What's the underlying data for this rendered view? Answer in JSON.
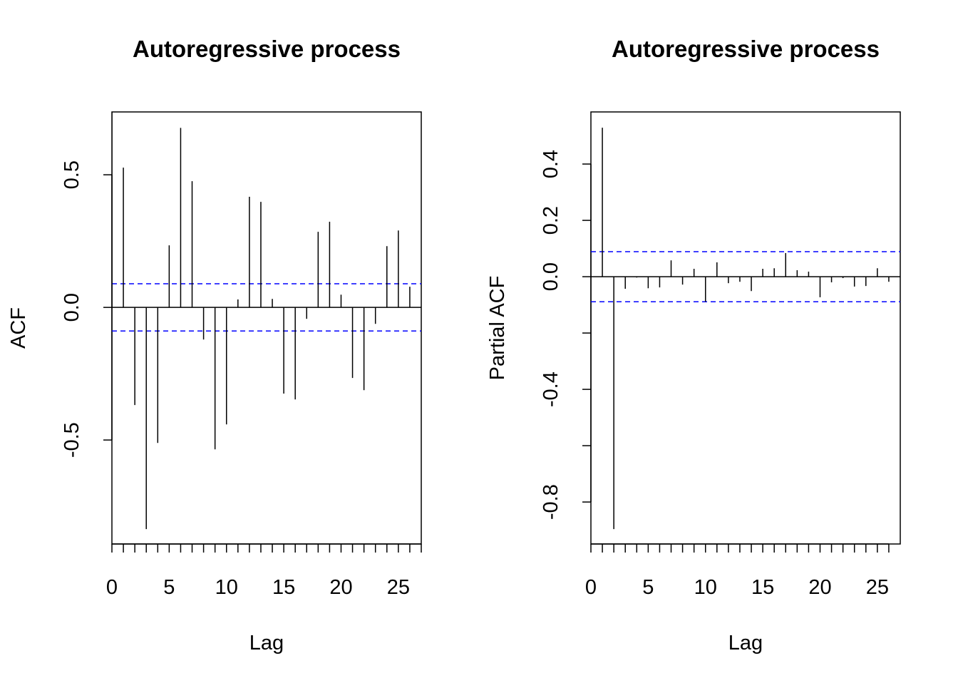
{
  "chart_data": [
    {
      "type": "stem",
      "title": "Autoregressive process",
      "x_label": "Lag",
      "y_label": "ACF",
      "x": [
        0,
        1,
        2,
        3,
        4,
        5,
        6,
        7,
        8,
        9,
        10,
        11,
        12,
        13,
        14,
        15,
        16,
        17,
        18,
        19,
        20,
        21,
        22,
        23,
        24,
        25,
        26
      ],
      "values": [
        1,
        0.527,
        -0.368,
        -0.836,
        -0.511,
        0.234,
        0.677,
        0.476,
        -0.121,
        -0.535,
        -0.441,
        0.03,
        0.417,
        0.398,
        0.032,
        -0.325,
        -0.347,
        -0.043,
        0.285,
        0.323,
        0.048,
        -0.266,
        -0.312,
        -0.062,
        0.231,
        0.29,
        0.078
      ],
      "color": "#000000",
      "ci": 0.089,
      "ci_color": "#0000ff",
      "xlim": [
        0,
        27
      ],
      "ylim": [
        -0.892,
        0.737
      ],
      "xticks": [
        0,
        {
          "value": 1,
          "label": null
        },
        {
          "value": 2,
          "label": null
        },
        {
          "value": 3,
          "label": null
        },
        {
          "value": 4,
          "label": null
        },
        5,
        {
          "value": 6,
          "label": null
        },
        {
          "value": 7,
          "label": null
        },
        {
          "value": 8,
          "label": null
        },
        {
          "value": 9,
          "label": null
        },
        10,
        {
          "value": 11,
          "label": null
        },
        {
          "value": 12,
          "label": null
        },
        {
          "value": 13,
          "label": null
        },
        {
          "value": 14,
          "label": null
        },
        15,
        {
          "value": 16,
          "label": null
        },
        {
          "value": 17,
          "label": null
        },
        {
          "value": 18,
          "label": null
        },
        {
          "value": 19,
          "label": null
        },
        20,
        {
          "value": 21,
          "label": null
        },
        {
          "value": 22,
          "label": null
        },
        {
          "value": 23,
          "label": null
        },
        {
          "value": 24,
          "label": null
        },
        25,
        {
          "value": 26,
          "label": null
        },
        {
          "value": 27,
          "label": null
        }
      ],
      "yticks": [
        -0.5,
        {
          "value": 0,
          "label": "0.0"
        },
        0.5
      ]
    },
    {
      "type": "stem",
      "title": "Autoregressive process",
      "x_label": "Lag",
      "y_label": "Partial ACF",
      "x": [
        1,
        2,
        3,
        4,
        5,
        6,
        7,
        8,
        9,
        10,
        11,
        12,
        13,
        14,
        15,
        16,
        17,
        18,
        19,
        20,
        21,
        22,
        23,
        24,
        25,
        26
      ],
      "values": [
        0.529,
        -0.896,
        -0.043,
        -0.003,
        -0.041,
        -0.038,
        0.058,
        -0.028,
        0.028,
        -0.089,
        0.051,
        -0.023,
        -0.018,
        -0.051,
        0.028,
        0.03,
        0.084,
        0.023,
        0.018,
        -0.073,
        -0.02,
        -0.005,
        -0.035,
        -0.033,
        0.03,
        -0.018
      ],
      "color": "#000000",
      "ci": 0.089,
      "ci_color": "#0000ff",
      "xlim": [
        0,
        27
      ],
      "ylim": [
        -0.949,
        0.585
      ],
      "xticks": [
        0,
        {
          "value": 1,
          "label": null
        },
        {
          "value": 2,
          "label": null
        },
        {
          "value": 3,
          "label": null
        },
        {
          "value": 4,
          "label": null
        },
        5,
        {
          "value": 6,
          "label": null
        },
        {
          "value": 7,
          "label": null
        },
        {
          "value": 8,
          "label": null
        },
        {
          "value": 9,
          "label": null
        },
        10,
        {
          "value": 11,
          "label": null
        },
        {
          "value": 12,
          "label": null
        },
        {
          "value": 13,
          "label": null
        },
        {
          "value": 14,
          "label": null
        },
        15,
        {
          "value": 16,
          "label": null
        },
        {
          "value": 17,
          "label": null
        },
        {
          "value": 18,
          "label": null
        },
        {
          "value": 19,
          "label": null
        },
        20,
        {
          "value": 21,
          "label": null
        },
        {
          "value": 22,
          "label": null
        },
        {
          "value": 23,
          "label": null
        },
        {
          "value": 24,
          "label": null
        },
        25,
        {
          "value": 26,
          "label": null
        }
      ],
      "yticks": [
        -0.8,
        {
          "value": -0.6,
          "label": null
        },
        -0.4,
        {
          "value": -0.2,
          "label": null
        },
        {
          "value": 0,
          "label": "0.0"
        },
        0.2,
        0.4
      ]
    }
  ]
}
